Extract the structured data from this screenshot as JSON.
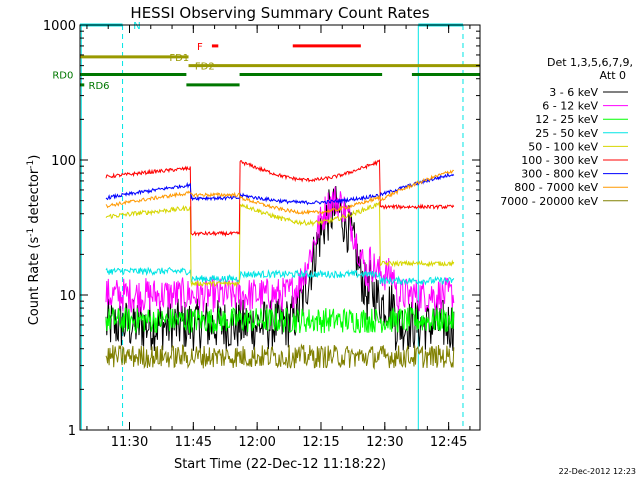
{
  "chart_data": {
    "type": "line",
    "title": "HESSI Observing Summary Count Rates",
    "xlabel": "Start Time (22-Dec-12 11:18:22)",
    "ylabel_main": "Count Rate (s",
    "ylabel_sup1": "-1",
    "ylabel_mid": " detector",
    "ylabel_sup2": "-1",
    "ylabel_end": ")",
    "y_scale": "log",
    "ylim": [
      1,
      1000
    ],
    "xlim_minutes": [
      0,
      94
    ],
    "x_ticks": [
      {
        "label": "11:30",
        "minute": 11.63
      },
      {
        "label": "11:45",
        "minute": 26.63
      },
      {
        "label": "12:00",
        "minute": 41.63
      },
      {
        "label": "12:15",
        "minute": 56.63
      },
      {
        "label": "12:30",
        "minute": 71.63
      },
      {
        "label": "12:45",
        "minute": 86.63
      }
    ],
    "y_ticks": [
      {
        "label": "1",
        "value": 1
      },
      {
        "label": "10",
        "value": 10
      },
      {
        "label": "100",
        "value": 100
      },
      {
        "label": "1000",
        "value": 1000
      }
    ],
    "legend_header": [
      "Det 1,3,5,6,7,9,",
      "Att 0"
    ],
    "legend_position": "right",
    "series": [
      {
        "name": "3 - 6 keV",
        "color": "#000000",
        "base": 6,
        "noise": 0.45
      },
      {
        "name": "6 - 12 keV",
        "color": "#ff00ff",
        "base": 10,
        "noise": 0.3
      },
      {
        "name": "12 - 25 keV",
        "color": "#00ff00",
        "base": 6.5,
        "noise": 0.22
      },
      {
        "name": "25 - 50 keV",
        "color": "#00e5e5",
        "base": 15,
        "noise": 0.06
      },
      {
        "name": "50 - 100 keV",
        "color": "#d6d600",
        "base": 38,
        "noise": 0.04
      },
      {
        "name": "100 - 300 keV",
        "color": "#ff0000",
        "base": 75,
        "noise": 0.03
      },
      {
        "name": "300 - 800 keV",
        "color": "#0000ff",
        "base": 55,
        "noise": 0.03
      },
      {
        "name": "800 - 7000 keV",
        "color": "#ff9900",
        "base": 48,
        "noise": 0.03
      },
      {
        "name": "7000 - 20000 keV",
        "color": "#808000",
        "base": 3.5,
        "noise": 0.2
      }
    ],
    "status_bars": [
      {
        "label": "N",
        "color": "#00e5e5",
        "label_minute": 12.5,
        "y": 1000,
        "segments": [
          [
            0,
            10
          ],
          [
            79.5,
            90
          ]
        ]
      },
      {
        "label": "F",
        "color": "#ff0000",
        "label_minute": 27.5,
        "y": 700,
        "segments": [
          [
            31,
            32.5
          ],
          [
            50,
            66
          ]
        ]
      },
      {
        "label": "FD1",
        "color": "#999900",
        "label_minute": 21,
        "y": 580,
        "segments": [
          [
            0,
            25.5
          ]
        ]
      },
      {
        "label": "FD2",
        "color": "#999900",
        "label_minute": 27,
        "y": 500,
        "segments": [
          [
            25.5,
            94
          ]
        ]
      },
      {
        "label": "RD0",
        "color": "#007700",
        "label_minute": -6.5,
        "y": 430,
        "segments": [
          [
            0,
            25
          ],
          [
            37.5,
            71
          ],
          [
            78,
            94
          ]
        ]
      },
      {
        "label": "RD6",
        "color": "#007700",
        "label_minute": 2,
        "y": 360,
        "segments": [
          [
            0,
            1
          ],
          [
            25,
            37.5
          ]
        ]
      }
    ],
    "vertical_lines": [
      {
        "minute": 0.3,
        "style": "solid",
        "color": "#00e5e5"
      },
      {
        "minute": 10,
        "style": "dashed",
        "color": "#00e5e5"
      },
      {
        "minute": 79.5,
        "style": "solid",
        "color": "#00e5e5"
      },
      {
        "minute": 90,
        "style": "dashed",
        "color": "#00e5e5"
      }
    ],
    "data_gaps_minutes": [
      [
        0,
        6
      ],
      [
        88,
        94
      ]
    ]
  },
  "footer_timestamp": "22-Dec-2012 12:23"
}
